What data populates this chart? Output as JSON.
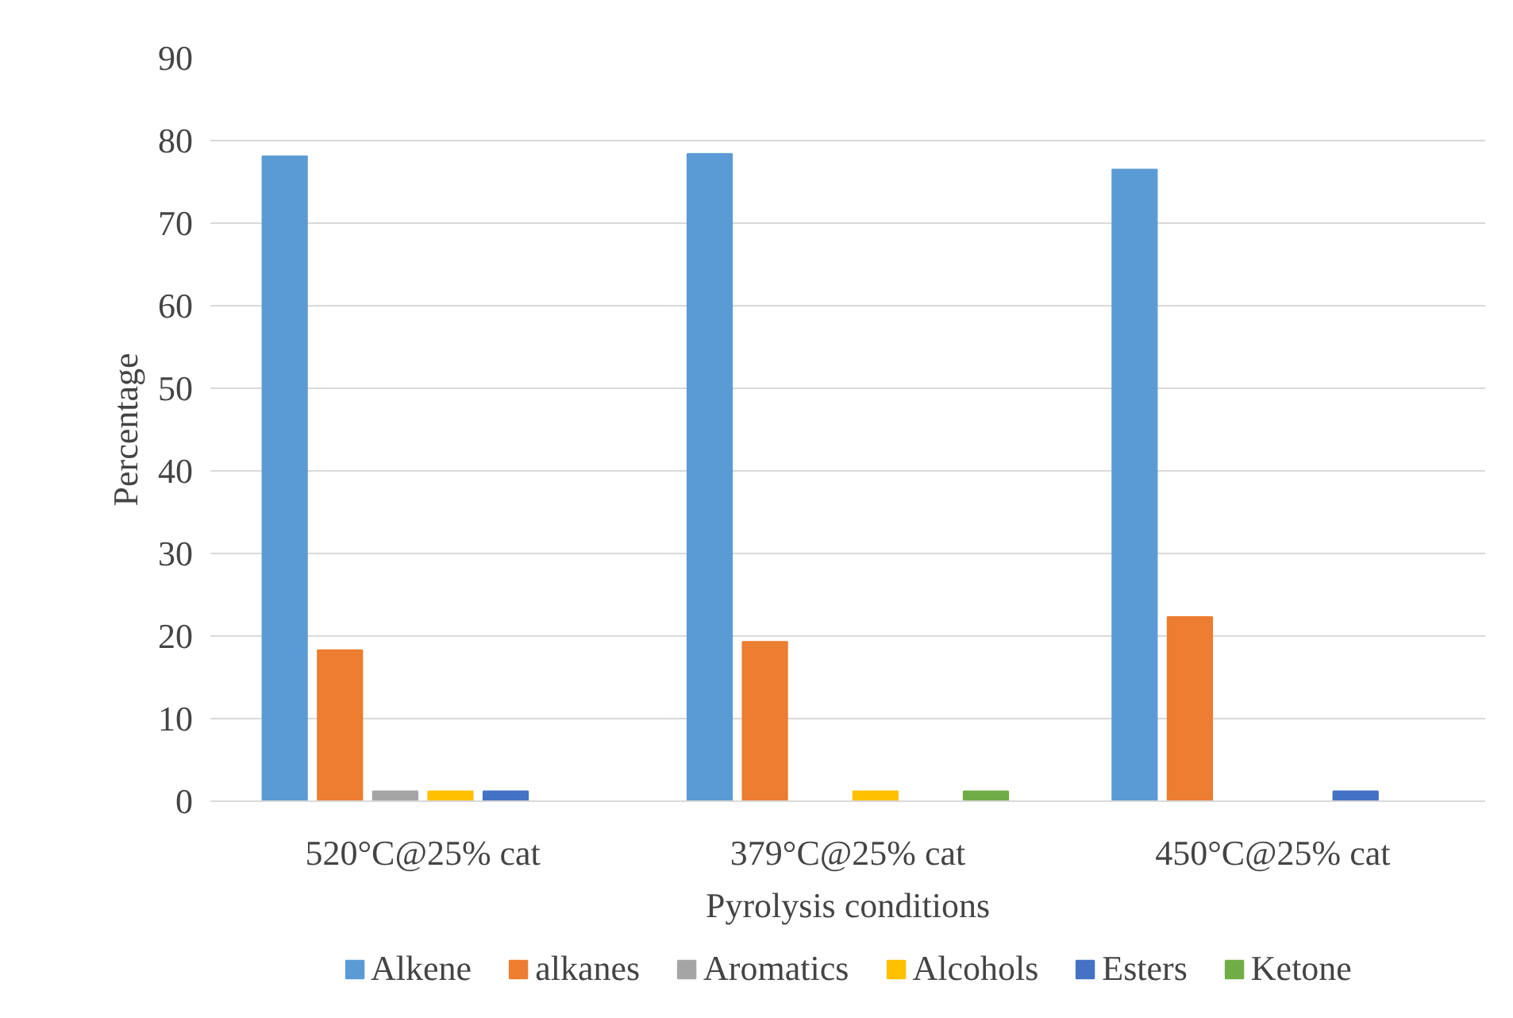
{
  "chart_data": {
    "type": "bar",
    "xlabel": "Pyrolysis conditions",
    "ylabel": "Percentage",
    "categories": [
      "520°C@25% cat",
      "379°C@25% cat",
      "450°C@25% cat"
    ],
    "series": [
      {
        "name": "Alkene",
        "color": "#5b9bd5",
        "values": [
          78.1,
          78.4,
          76.5
        ]
      },
      {
        "name": "alkanes",
        "color": "#ed7d31",
        "values": [
          18.3,
          19.3,
          22.3
        ]
      },
      {
        "name": "Aromatics",
        "color": "#a5a5a5",
        "values": [
          1.2,
          null,
          null
        ]
      },
      {
        "name": "Alcohols",
        "color": "#ffc000",
        "values": [
          1.2,
          1.2,
          null
        ]
      },
      {
        "name": "Esters",
        "color": "#4472c4",
        "values": [
          1.2,
          null,
          1.2
        ]
      },
      {
        "name": "Ketone",
        "color": "#70ad47",
        "values": [
          null,
          1.2,
          null
        ]
      }
    ],
    "ylim": [
      0,
      90
    ],
    "yticks": [
      0,
      10,
      20,
      30,
      40,
      50,
      60,
      70,
      80,
      90
    ],
    "grid": "y",
    "legend": "bottom"
  }
}
